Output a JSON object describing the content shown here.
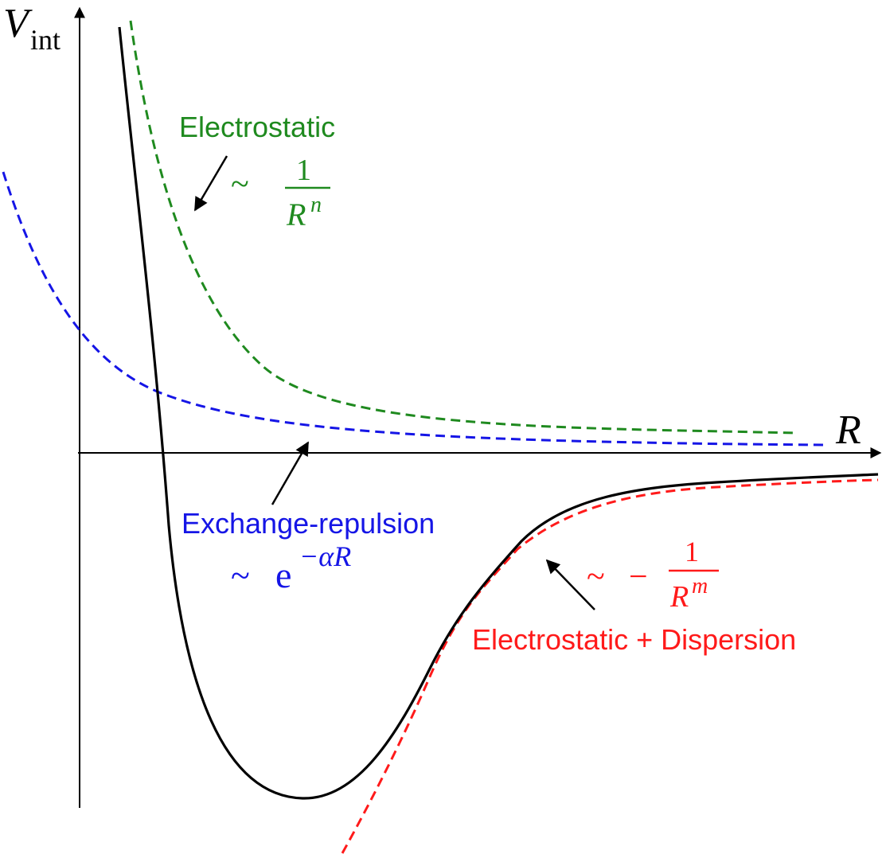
{
  "colors": {
    "axis": "#000000",
    "total_curve": "#000000",
    "electrostatic": "#1f8a1f",
    "exchange": "#1515e6",
    "dispersion": "#ff1a1a",
    "arrow": "#000000"
  },
  "axes": {
    "y_label_main": "V",
    "y_label_sub": "int",
    "x_label": "R"
  },
  "labels": {
    "electrostatic": {
      "title": "Electrostatic",
      "tilde": "~",
      "numerator": "1",
      "denominator_base": "R",
      "denominator_exp": "n"
    },
    "exchange": {
      "title": "Exchange-repulsion",
      "tilde": "~",
      "base": "e",
      "exponent": "−αR"
    },
    "dispersion": {
      "title": "Electrostatic + Dispersion",
      "tilde": "~",
      "minus": "−",
      "numerator": "1",
      "denominator_base": "R",
      "denominator_exp": "m"
    }
  },
  "curves": [
    {
      "name": "total-interaction-curve",
      "style": "solid",
      "color": "#000000"
    },
    {
      "name": "electrostatic-curve",
      "style": "dashed",
      "color": "#1f8a1f"
    },
    {
      "name": "exchange-repulsion-curve",
      "style": "dashed",
      "color": "#1515e6"
    },
    {
      "name": "dispersion-curve",
      "style": "dashed",
      "color": "#ff1a1a"
    }
  ]
}
